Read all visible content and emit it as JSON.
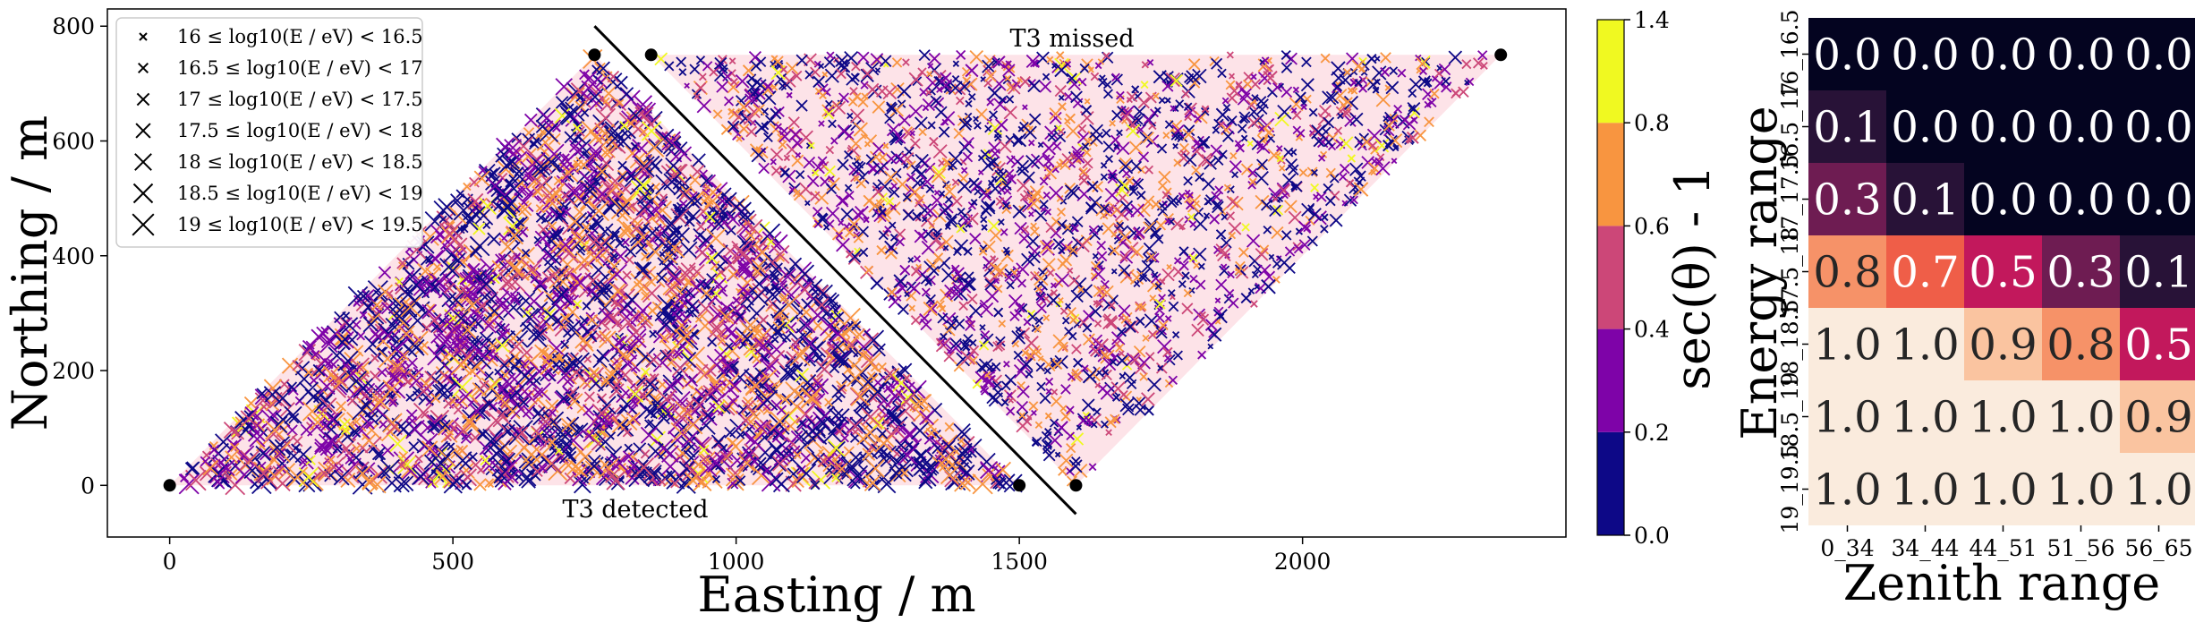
{
  "chart_data": [
    {
      "type": "scatter",
      "xlabel": "Easting / m",
      "ylabel": "Northing / m",
      "xlim": [
        -110,
        2465
      ],
      "ylim": [
        -90,
        830
      ],
      "xticks": [
        "0",
        "500",
        "1000",
        "1500",
        "2000"
      ],
      "yticks": [
        "0",
        "200",
        "400",
        "600",
        "800"
      ],
      "grid": false,
      "legend_placement": "top-left",
      "legend": [
        {
          "label": "16 ≤ log10(E / eV) < 16.5"
        },
        {
          "label": "16.5 ≤ log10(E / eV) < 17"
        },
        {
          "label": "17 ≤ log10(E / eV) < 17.5"
        },
        {
          "label": "17.5 ≤ log10(E / eV) < 18"
        },
        {
          "label": "18 ≤ log10(E / eV) < 18.5"
        },
        {
          "label": "18.5 ≤ log10(E / eV) < 19"
        },
        {
          "label": "19 ≤ log10(E / eV) < 19.5"
        }
      ],
      "stations": [
        {
          "x": 0,
          "y": 0
        },
        {
          "x": 750,
          "y": 750
        },
        {
          "x": 850,
          "y": 750
        },
        {
          "x": 1500,
          "y": 0
        },
        {
          "x": 1600,
          "y": 0
        },
        {
          "x": 2350,
          "y": 750
        }
      ],
      "divider_line": {
        "x": [
          750,
          1600
        ],
        "y": [
          800,
          -50
        ]
      },
      "regions": [
        {
          "label": "T3 detected",
          "vertices": [
            [
              0,
              0
            ],
            [
              750,
              750
            ],
            [
              1500,
              0
            ]
          ]
        },
        {
          "label": "T3 missed",
          "vertices": [
            [
              850,
              750
            ],
            [
              2350,
              750
            ],
            [
              1600,
              0
            ]
          ]
        }
      ],
      "annotations": [
        "T3 detected",
        "T3 missed"
      ],
      "colorbar": {
        "label": "sec(θ) - 1",
        "ticks": [
          "0.0",
          "0.2",
          "0.4",
          "0.6",
          "0.8",
          "1.4"
        ],
        "bins": [
          {
            "from": 0.0,
            "to": 0.2,
            "color": "#0d0887"
          },
          {
            "from": 0.2,
            "to": 0.4,
            "color": "#7e03a8"
          },
          {
            "from": 0.4,
            "to": 0.6,
            "color": "#cc4778"
          },
          {
            "from": 0.6,
            "to": 0.8,
            "color": "#f89540"
          },
          {
            "from": 0.8,
            "to": 1.4,
            "color": "#f0f921"
          }
        ]
      },
      "colors": {
        "region_fill": "#fde3e8"
      }
    },
    {
      "type": "heatmap",
      "xlabel": "Zenith range",
      "ylabel": "Energy range",
      "xticks": [
        "0_34",
        "34_44",
        "44_51",
        "51_56",
        "56_65"
      ],
      "yticks": [
        "16_16.5",
        "16.5_17",
        "17_17.5",
        "17.5_18",
        "18_18.5",
        "18.5_19",
        "19_19.5"
      ],
      "values": [
        [
          0.0,
          0.0,
          0.0,
          0.0,
          0.0
        ],
        [
          0.1,
          0.0,
          0.0,
          0.0,
          0.0
        ],
        [
          0.3,
          0.1,
          0.0,
          0.0,
          0.0
        ],
        [
          0.8,
          0.7,
          0.5,
          0.3,
          0.1
        ],
        [
          1.0,
          1.0,
          0.9,
          0.8,
          0.5
        ],
        [
          1.0,
          1.0,
          1.0,
          1.0,
          0.9
        ],
        [
          1.0,
          1.0,
          1.0,
          1.0,
          1.0
        ]
      ],
      "value_labels": [
        [
          "0.0",
          "0.0",
          "0.0",
          "0.0",
          "0.0"
        ],
        [
          "0.1",
          "0.0",
          "0.0",
          "0.0",
          "0.0"
        ],
        [
          "0.3",
          "0.1",
          "0.0",
          "0.0",
          "0.0"
        ],
        [
          "0.8",
          "0.7",
          "0.5",
          "0.3",
          "0.1"
        ],
        [
          "1.0",
          "1.0",
          "0.9",
          "0.8",
          "0.5"
        ],
        [
          "1.0",
          "1.0",
          "1.0",
          "1.0",
          "0.9"
        ],
        [
          "1.0",
          "1.0",
          "1.0",
          "1.0",
          "1.0"
        ]
      ],
      "colormap": "rocket"
    }
  ]
}
